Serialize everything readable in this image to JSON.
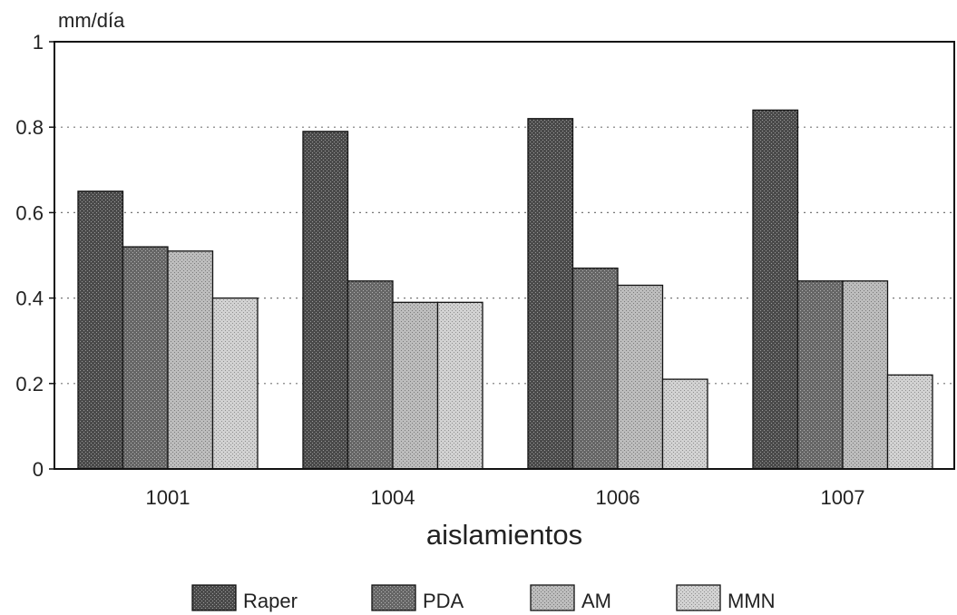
{
  "chart_data": {
    "type": "bar",
    "ylabel": "mm/día",
    "xlabel": "aislamientos",
    "categories": [
      "1001",
      "1004",
      "1006",
      "1007"
    ],
    "series": [
      {
        "name": "Raper",
        "values": [
          0.65,
          0.79,
          0.82,
          0.84
        ],
        "color": "#555555"
      },
      {
        "name": "PDA",
        "values": [
          0.52,
          0.44,
          0.47,
          0.44
        ],
        "color": "#6e6e6e"
      },
      {
        "name": "AM",
        "values": [
          0.51,
          0.39,
          0.43,
          0.44
        ],
        "color": "#b0b0b0"
      },
      {
        "name": "MMN",
        "values": [
          0.4,
          0.39,
          0.21,
          0.22
        ],
        "color": "#c6c6c6"
      }
    ],
    "ylim": [
      0,
      1
    ],
    "yticks": [
      "0",
      "0.2",
      "0.4",
      "0.6",
      "0.8",
      "1"
    ],
    "ytick_values": [
      0,
      0.2,
      0.4,
      0.6,
      0.8,
      1
    ],
    "grid": "dotted horizontal at 0.2, 0.4, 0.6, 0.8",
    "legend": "bottom"
  }
}
